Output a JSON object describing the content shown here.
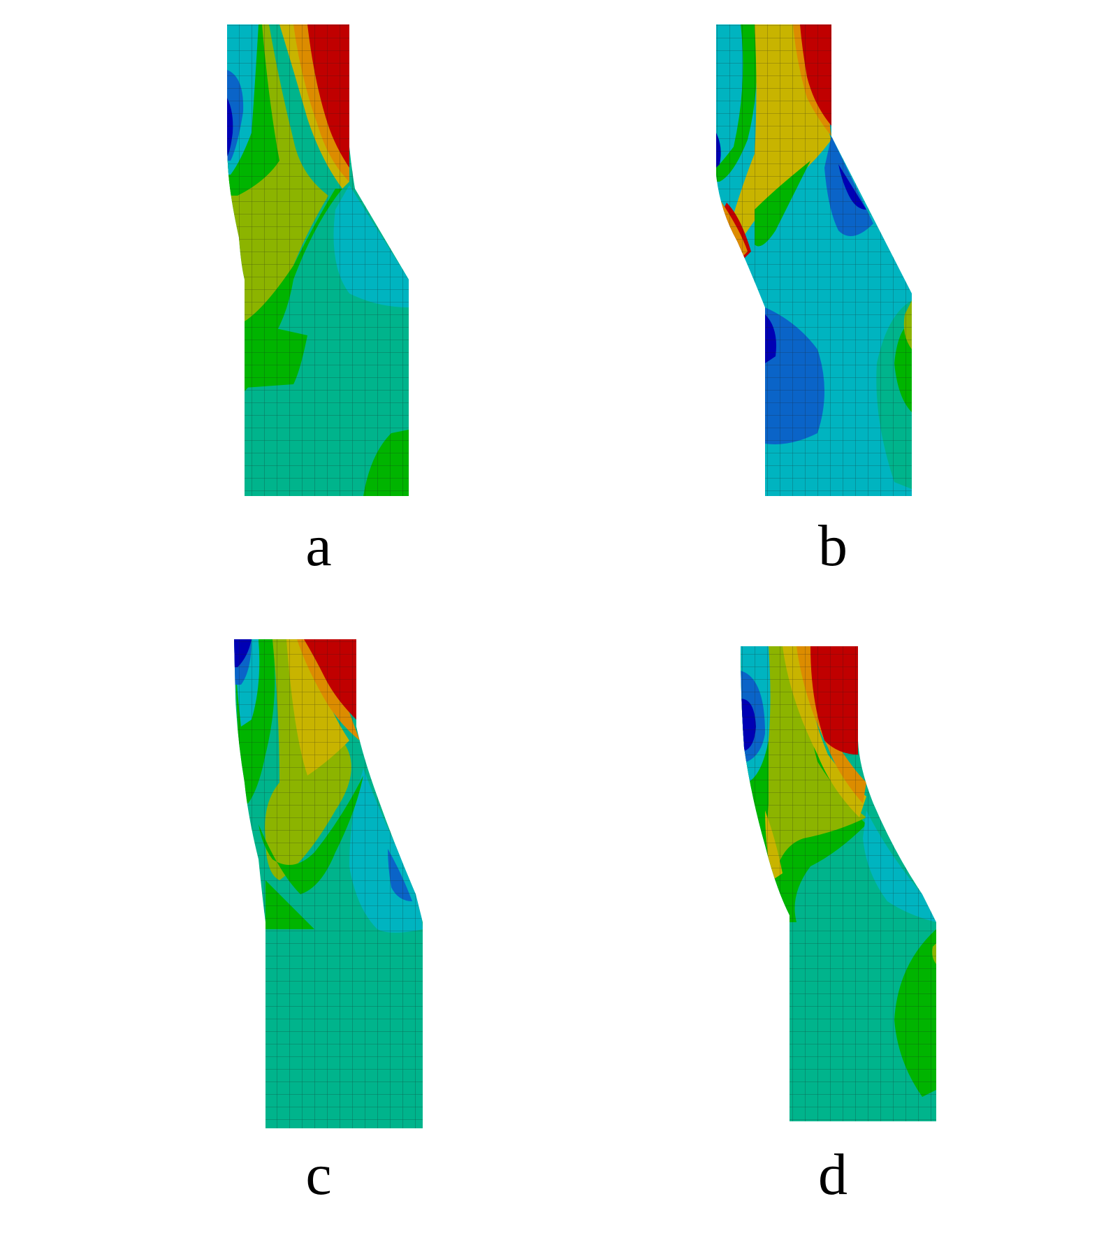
{
  "panels": [
    {
      "id": "a",
      "label": "a"
    },
    {
      "id": "b",
      "label": "b"
    },
    {
      "id": "c",
      "label": "c"
    },
    {
      "id": "d",
      "label": "d"
    }
  ],
  "colormap": [
    "#0000b4",
    "#0a64c8",
    "#00b4c0",
    "#00b48c",
    "#00b400",
    "#8cb400",
    "#c8b400",
    "#dc8c00",
    "#c00000"
  ]
}
